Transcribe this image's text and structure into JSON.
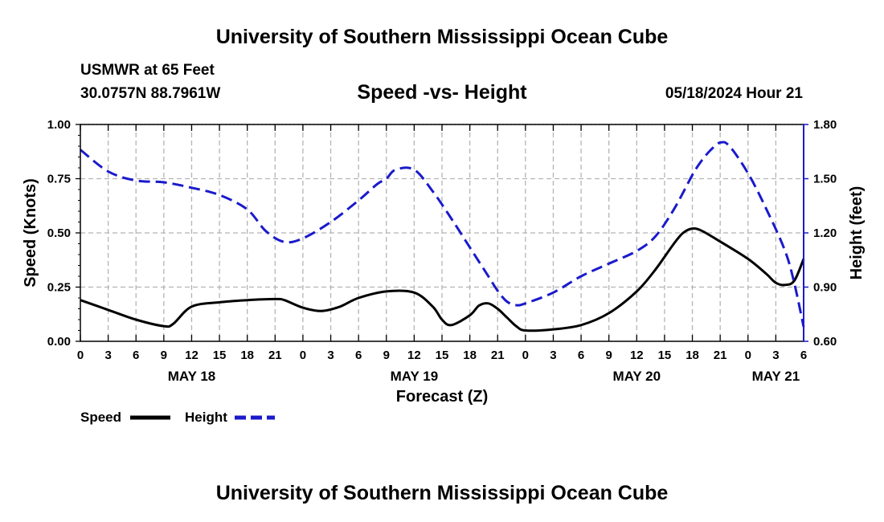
{
  "header": {
    "title_top": "University of Southern Mississippi Ocean Cube",
    "title_bottom": "University of Southern Mississippi Ocean Cube",
    "station": "USMWR at 65 Feet",
    "coords": "30.0757N  88.7961W",
    "subtitle": "Speed -vs- Height",
    "datetime": "05/18/2024 Hour 21"
  },
  "legend": {
    "speed_label": "Speed",
    "height_label": "Height"
  },
  "chart_data": {
    "type": "line",
    "xlabel": "Forecast (Z)",
    "ylabel_left": "Speed (Knots)",
    "ylabel_right": "Height (feet)",
    "x_hours": [
      0,
      78
    ],
    "x_tick_labels": [
      "0",
      "3",
      "6",
      "9",
      "12",
      "15",
      "18",
      "21",
      "0",
      "3",
      "6",
      "9",
      "12",
      "15",
      "18",
      "21",
      "0",
      "3",
      "6",
      "9",
      "12",
      "15",
      "18",
      "21",
      "0",
      "3",
      "6"
    ],
    "date_labels": [
      {
        "label": "MAY 18",
        "hour": 12
      },
      {
        "label": "MAY 19",
        "hour": 36
      },
      {
        "label": "MAY 20",
        "hour": 60
      },
      {
        "label": "MAY 21",
        "hour": 75
      }
    ],
    "y_left": {
      "range": [
        0,
        1.0
      ],
      "ticks": [
        0,
        0.25,
        0.5,
        0.75,
        1.0
      ],
      "tick_labels": [
        "0.00",
        "0.25",
        "0.50",
        "0.75",
        "1.00"
      ]
    },
    "y_right": {
      "range": [
        0.6,
        1.8
      ],
      "ticks": [
        0.6,
        0.9,
        1.2,
        1.5,
        1.8
      ],
      "tick_labels": [
        "0.60",
        "0.90",
        "1.20",
        "1.50",
        "1.80"
      ]
    },
    "series": [
      {
        "name": "Speed",
        "axis": "left",
        "color": "#000000",
        "dash": false,
        "points": [
          [
            0,
            0.19
          ],
          [
            3,
            0.145
          ],
          [
            6,
            0.1
          ],
          [
            9,
            0.07
          ],
          [
            10,
            0.08
          ],
          [
            12,
            0.16
          ],
          [
            15,
            0.18
          ],
          [
            18,
            0.19
          ],
          [
            21,
            0.195
          ],
          [
            22,
            0.19
          ],
          [
            24,
            0.155
          ],
          [
            26,
            0.14
          ],
          [
            28,
            0.16
          ],
          [
            30,
            0.2
          ],
          [
            33,
            0.23
          ],
          [
            36,
            0.225
          ],
          [
            38,
            0.16
          ],
          [
            39,
            0.1
          ],
          [
            40,
            0.075
          ],
          [
            42,
            0.12
          ],
          [
            43,
            0.165
          ],
          [
            44,
            0.175
          ],
          [
            45,
            0.15
          ],
          [
            46,
            0.11
          ],
          [
            47,
            0.07
          ],
          [
            48,
            0.05
          ],
          [
            51,
            0.055
          ],
          [
            54,
            0.075
          ],
          [
            57,
            0.13
          ],
          [
            60,
            0.23
          ],
          [
            62,
            0.33
          ],
          [
            64,
            0.45
          ],
          [
            65,
            0.5
          ],
          [
            66,
            0.52
          ],
          [
            67,
            0.51
          ],
          [
            69,
            0.46
          ],
          [
            72,
            0.38
          ],
          [
            74,
            0.31
          ],
          [
            75,
            0.27
          ],
          [
            76,
            0.26
          ],
          [
            77,
            0.28
          ],
          [
            78,
            0.38
          ]
        ]
      },
      {
        "name": "Height",
        "axis": "right",
        "color": "#1a1acc",
        "dash": true,
        "points": [
          [
            0,
            1.66
          ],
          [
            3,
            1.54
          ],
          [
            6,
            1.49
          ],
          [
            9,
            1.48
          ],
          [
            12,
            1.45
          ],
          [
            15,
            1.41
          ],
          [
            18,
            1.33
          ],
          [
            20,
            1.21
          ],
          [
            22,
            1.15
          ],
          [
            24,
            1.17
          ],
          [
            27,
            1.26
          ],
          [
            30,
            1.38
          ],
          [
            32,
            1.47
          ],
          [
            33,
            1.5
          ],
          [
            34,
            1.55
          ],
          [
            36,
            1.55
          ],
          [
            38,
            1.43
          ],
          [
            40,
            1.28
          ],
          [
            42,
            1.12
          ],
          [
            44,
            0.96
          ],
          [
            45,
            0.88
          ],
          [
            46,
            0.82
          ],
          [
            47,
            0.8
          ],
          [
            48,
            0.81
          ],
          [
            51,
            0.87
          ],
          [
            54,
            0.96
          ],
          [
            57,
            1.03
          ],
          [
            60,
            1.1
          ],
          [
            62,
            1.18
          ],
          [
            64,
            1.33
          ],
          [
            66,
            1.52
          ],
          [
            67,
            1.6
          ],
          [
            68,
            1.66
          ],
          [
            69,
            1.7
          ],
          [
            70,
            1.68
          ],
          [
            72,
            1.53
          ],
          [
            74,
            1.33
          ],
          [
            76,
            1.1
          ],
          [
            77,
            0.92
          ],
          [
            78,
            0.68
          ]
        ]
      }
    ]
  }
}
